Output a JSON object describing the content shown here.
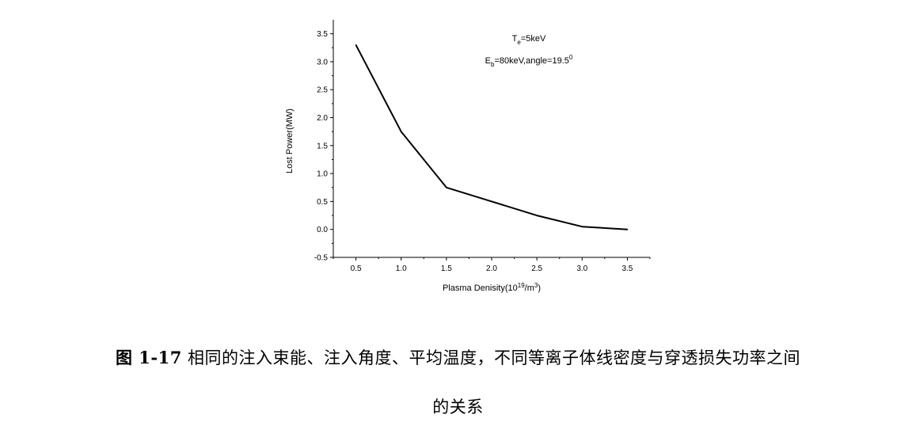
{
  "chart_data": {
    "type": "line",
    "xlabel": "Plasma Denisity(10",
    "xlabel_sup": "19",
    "xlabel_mid": "/m",
    "xlabel_sup2": "3",
    "xlabel_end": ")",
    "ylabel": "Lost Power(MW)",
    "xlim": [
      0.25,
      3.75
    ],
    "ylim": [
      -0.5,
      3.75
    ],
    "x_ticks": [
      "0.5",
      "1.0",
      "1.5",
      "2.0",
      "2.5",
      "3.0",
      "3.5"
    ],
    "y_ticks": [
      "-0.5",
      "0.0",
      "0.5",
      "1.0",
      "1.5",
      "2.0",
      "2.5",
      "3.0",
      "3.5"
    ],
    "series": [
      {
        "x": [
          0.5,
          1.0,
          1.5,
          2.0,
          2.5,
          3.0,
          3.5
        ],
        "y": [
          3.3,
          1.75,
          0.75,
          0.5,
          0.25,
          0.05,
          0.0
        ]
      }
    ],
    "annotations": {
      "line1_main": "T",
      "line1_sub": "e",
      "line1_rest": "=5keV",
      "line2_main": "E",
      "line2_sub": "b",
      "line2_rest": "=80keV,angle=19.5",
      "line2_sup": "0"
    },
    "line_color": "#000000"
  },
  "caption": {
    "label": "图 1-17",
    "line1": "相同的注入束能、注入角度、平均温度，不同等离子体线密度与穿透损失功率之间",
    "line2": "的关系"
  }
}
